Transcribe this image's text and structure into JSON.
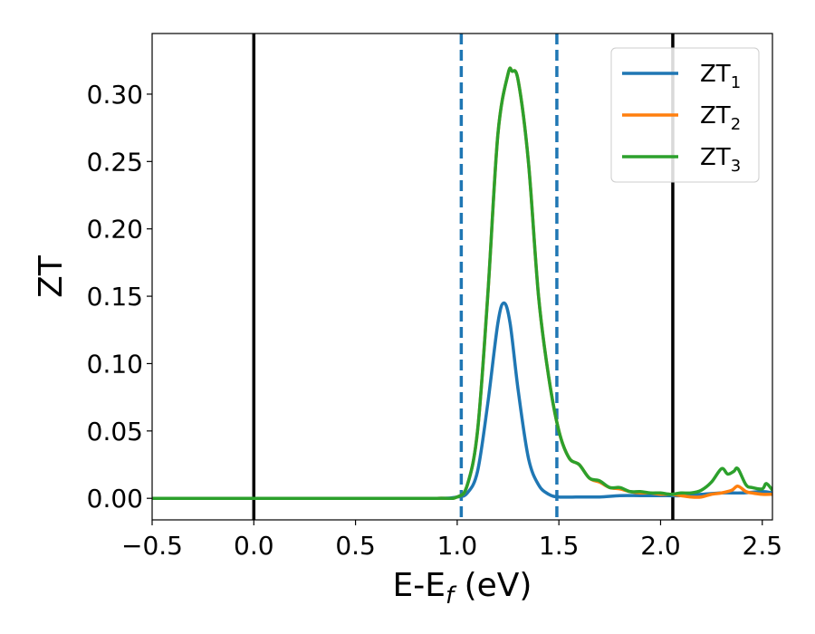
{
  "chart_data": {
    "type": "line",
    "xlabel": {
      "main": "E-E",
      "sub": "f",
      "rest": " (eV)"
    },
    "ylabel": "ZT",
    "xlim": [
      -0.5,
      2.55
    ],
    "ylim": [
      -0.016,
      0.345
    ],
    "xticks": [
      -0.5,
      0.0,
      0.5,
      1.0,
      1.5,
      2.0,
      2.5
    ],
    "xtick_labels": [
      "−0.5",
      "0.0",
      "0.5",
      "1.0",
      "1.5",
      "2.0",
      "2.5"
    ],
    "yticks": [
      0.0,
      0.05,
      0.1,
      0.15,
      0.2,
      0.25,
      0.3
    ],
    "ytick_labels": [
      "0.00",
      "0.05",
      "0.10",
      "0.15",
      "0.20",
      "0.25",
      "0.30"
    ],
    "grid": false,
    "legend_position": "top-right",
    "vertical_lines": [
      {
        "x": 0.0,
        "style": "solid",
        "color": "#000000"
      },
      {
        "x": 2.06,
        "style": "solid",
        "color": "#000000"
      },
      {
        "x": 1.02,
        "style": "dashed",
        "color": "#1f77b4"
      },
      {
        "x": 1.49,
        "style": "dashed",
        "color": "#1f77b4"
      }
    ],
    "series": [
      {
        "name": "ZT",
        "sub": "1",
        "color": "#1f77b4",
        "x": [
          -0.5,
          0.0,
          0.5,
          0.9,
          1.0,
          1.05,
          1.1,
          1.15,
          1.2,
          1.23,
          1.26,
          1.3,
          1.35,
          1.4,
          1.45,
          1.5,
          1.6,
          1.7,
          1.8,
          1.9,
          2.0,
          2.1,
          2.2,
          2.3,
          2.4,
          2.5,
          2.55
        ],
        "y": [
          0,
          0,
          0,
          0,
          0.001,
          0.004,
          0.02,
          0.07,
          0.13,
          0.145,
          0.13,
          0.08,
          0.03,
          0.01,
          0.003,
          0.001,
          0.001,
          0.001,
          0.002,
          0.002,
          0.002,
          0.002,
          0.003,
          0.004,
          0.004,
          0.005,
          0.004
        ]
      },
      {
        "name": "ZT",
        "sub": "2",
        "color": "#ff7f0e",
        "x": [
          -0.5,
          0.0,
          0.5,
          0.9,
          1.0,
          1.05,
          1.1,
          1.15,
          1.2,
          1.25,
          1.27,
          1.3,
          1.35,
          1.4,
          1.45,
          1.5,
          1.55,
          1.6,
          1.65,
          1.7,
          1.75,
          1.8,
          1.85,
          1.9,
          1.95,
          2.0,
          2.05,
          2.1,
          2.15,
          2.2,
          2.25,
          2.3,
          2.35,
          2.38,
          2.42,
          2.45,
          2.5,
          2.55
        ],
        "y": [
          0,
          0,
          0,
          0,
          0.001,
          0.01,
          0.05,
          0.15,
          0.27,
          0.315,
          0.317,
          0.31,
          0.25,
          0.15,
          0.09,
          0.05,
          0.03,
          0.025,
          0.015,
          0.012,
          0.008,
          0.007,
          0.005,
          0.004,
          0.004,
          0.003,
          0.003,
          0.002,
          0.001,
          0.001,
          0.003,
          0.004,
          0.006,
          0.009,
          0.005,
          0.004,
          0.003,
          0.003
        ]
      },
      {
        "name": "ZT",
        "sub": "3",
        "color": "#2ca02c",
        "x": [
          -0.5,
          0.0,
          0.5,
          0.9,
          1.0,
          1.05,
          1.1,
          1.15,
          1.2,
          1.25,
          1.27,
          1.3,
          1.35,
          1.4,
          1.45,
          1.5,
          1.55,
          1.6,
          1.65,
          1.7,
          1.75,
          1.8,
          1.85,
          1.9,
          1.95,
          2.0,
          2.05,
          2.1,
          2.15,
          2.2,
          2.25,
          2.3,
          2.33,
          2.36,
          2.38,
          2.42,
          2.45,
          2.5,
          2.52,
          2.55
        ],
        "y": [
          0,
          0,
          0,
          0,
          0.001,
          0.01,
          0.05,
          0.15,
          0.27,
          0.315,
          0.317,
          0.31,
          0.25,
          0.15,
          0.09,
          0.05,
          0.03,
          0.025,
          0.015,
          0.013,
          0.008,
          0.008,
          0.005,
          0.005,
          0.004,
          0.004,
          0.003,
          0.004,
          0.004,
          0.006,
          0.012,
          0.022,
          0.018,
          0.02,
          0.022,
          0.01,
          0.008,
          0.007,
          0.011,
          0.006
        ]
      }
    ]
  }
}
